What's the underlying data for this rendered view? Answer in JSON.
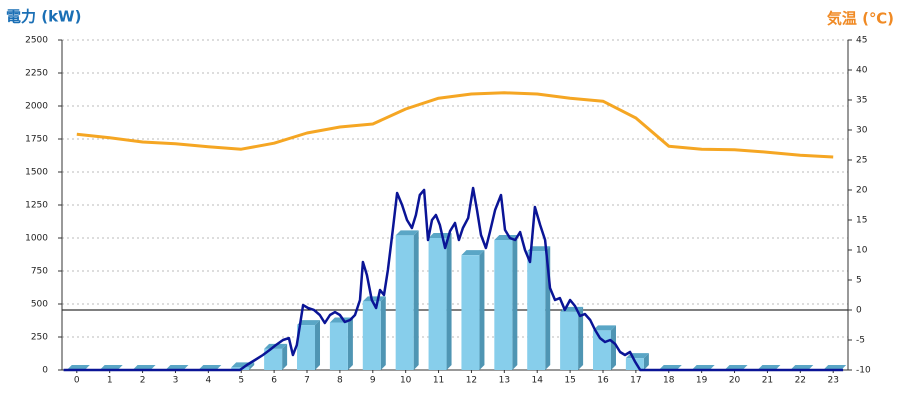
{
  "chart_data": {
    "type": "combo",
    "y_label": "電力 (kW)",
    "y2_label": "気温 (℃)",
    "x": [
      0,
      1,
      2,
      3,
      4,
      5,
      6,
      7,
      8,
      9,
      10,
      11,
      12,
      13,
      14,
      15,
      16,
      17,
      18,
      19,
      20,
      21,
      22,
      23
    ],
    "xlim": [
      -0.45,
      23.45
    ],
    "xticks": [
      0,
      1,
      2,
      3,
      4,
      5,
      6,
      7,
      8,
      9,
      10,
      11,
      12,
      13,
      14,
      15,
      16,
      17,
      18,
      19,
      20,
      21,
      22,
      23
    ],
    "ylim": [
      0,
      2500
    ],
    "yticks": [
      0,
      250,
      500,
      750,
      1000,
      1250,
      1500,
      1750,
      2000,
      2250,
      2500
    ],
    "y2lim": [
      -10,
      45
    ],
    "y2ticks": [
      -10,
      -5,
      0,
      5,
      10,
      15,
      20,
      25,
      30,
      35,
      40,
      45
    ],
    "grid": true,
    "series": [
      {
        "type": "bar",
        "color": "#87ceeb",
        "values": [
          0,
          0,
          0,
          0,
          0,
          20,
          160,
          340,
          360,
          520,
          1020,
          1000,
          870,
          985,
          900,
          440,
          300,
          90,
          0,
          0,
          0,
          0,
          0,
          0
        ]
      },
      {
        "type": "line",
        "color": "#0a1496",
        "x": [
          -0.4,
          4.96,
          5.17,
          5.42,
          5.66,
          5.87,
          6.05,
          6.27,
          6.45,
          6.57,
          6.69,
          6.88,
          7.03,
          7.21,
          7.39,
          7.54,
          7.7,
          7.85,
          8.0,
          8.15,
          8.31,
          8.46,
          8.61,
          8.7,
          8.82,
          8.97,
          9.1,
          9.22,
          9.34,
          9.46,
          9.61,
          9.74,
          9.89,
          10.04,
          10.19,
          10.31,
          10.43,
          10.56,
          10.68,
          10.8,
          10.92,
          11.04,
          11.2,
          11.35,
          11.5,
          11.62,
          11.74,
          11.9,
          12.05,
          12.17,
          12.29,
          12.44,
          12.56,
          12.72,
          12.9,
          13.02,
          13.17,
          13.33,
          13.48,
          13.63,
          13.78,
          13.93,
          14.09,
          14.24,
          14.39,
          14.54,
          14.69,
          14.84,
          15.0,
          15.15,
          15.3,
          15.45,
          15.61,
          15.76,
          15.91,
          16.06,
          16.22,
          16.37,
          16.52,
          16.67,
          16.82,
          16.98,
          17.13,
          23.3
        ],
        "values": [
          0,
          0,
          38,
          76,
          114,
          152,
          189,
          227,
          242,
          114,
          189,
          492,
          470,
          455,
          417,
          356,
          417,
          439,
          417,
          364,
          379,
          417,
          530,
          818,
          720,
          530,
          470,
          606,
          568,
          758,
          1061,
          1341,
          1250,
          1136,
          1076,
          1174,
          1326,
          1364,
          985,
          1136,
          1174,
          1098,
          924,
          1053,
          1114,
          985,
          1076,
          1152,
          1379,
          1212,
          1023,
          924,
          1045,
          1212,
          1326,
          1061,
          1000,
          985,
          1045,
          909,
          818,
          1235,
          1098,
          985,
          621,
          530,
          545,
          455,
          530,
          485,
          409,
          424,
          379,
          303,
          242,
          212,
          227,
          197,
          136,
          114,
          136,
          61,
          0,
          0
        ]
      },
      {
        "type": "line",
        "axis": "y2",
        "color": "#f5a623",
        "values": [
          29.3,
          28.7,
          28.0,
          27.7,
          27.2,
          26.8,
          27.8,
          29.5,
          30.5,
          31.0,
          33.5,
          35.3,
          36.0,
          36.2,
          36.0,
          35.3,
          34.8,
          32.0,
          27.3,
          26.8,
          26.7,
          26.3,
          25.8,
          25.5
        ]
      }
    ]
  }
}
